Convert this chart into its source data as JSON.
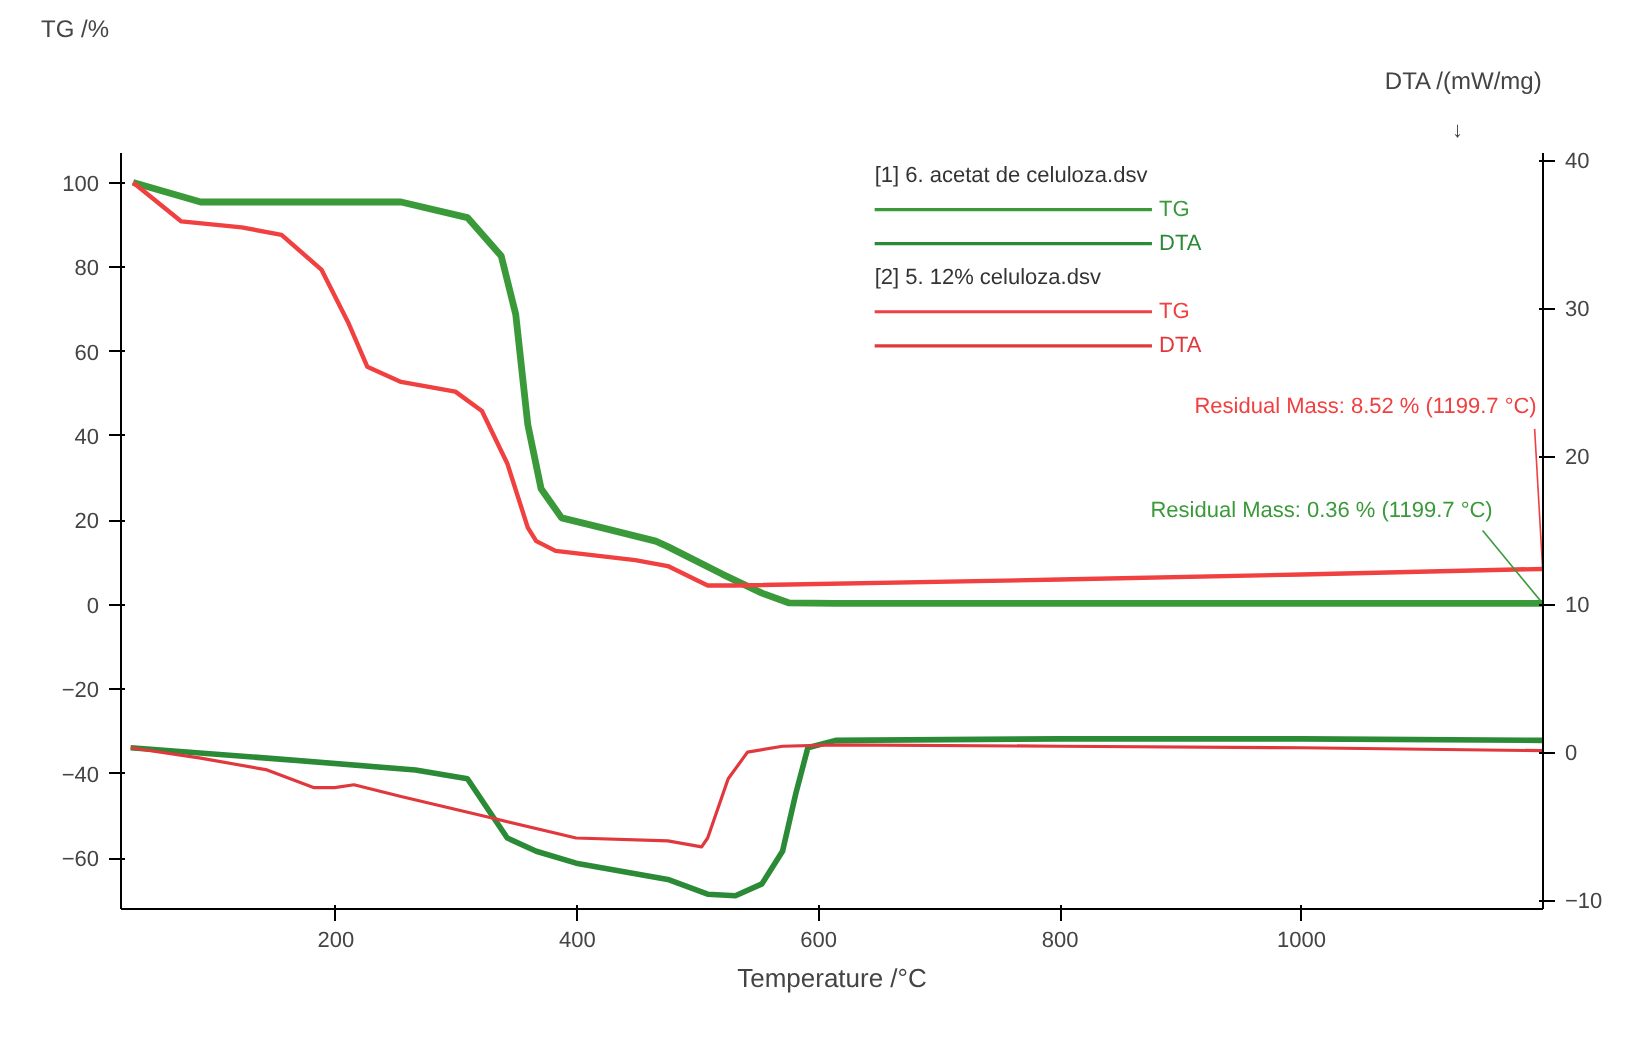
{
  "chart_data": {
    "type": "line",
    "xlabel": "Temperature /°C",
    "ylabel": "TG /%",
    "y2label": "DTA /(mW/mg)",
    "xlim": [
      22,
      1200
    ],
    "xticks": [
      200,
      400,
      600,
      800,
      1000
    ],
    "ylim": [
      -72,
      107
    ],
    "yticks": [
      -60,
      -40,
      -20,
      0,
      20,
      40,
      60,
      80,
      100
    ],
    "y2lim": [
      -10.6,
      40.5
    ],
    "y2ticks": [
      -10,
      0,
      10,
      20,
      30,
      40
    ],
    "grid": false,
    "legend": "top",
    "line_style": "solid",
    "marker": "none",
    "annotations": [
      "[1] 6. acetat de celuloza.dsv",
      "[2] 5. 12% celuloza.dsv",
      "↓",
      {
        "text": "Residual Mass: 8.52 % (1199.7 °C)",
        "x": 1199.7,
        "y": 8.52
      },
      {
        "text": "Residual Mass: 0.36 % (1199.7 °C)",
        "x": 1199.7,
        "y": 0.36
      }
    ],
    "series": [
      {
        "name": "TG",
        "color": "#3a9a3a",
        "x": [
          32,
          88,
          254,
          309,
          337,
          349,
          359,
          370,
          387,
          420,
          465,
          475,
          520,
          553,
          575,
          614,
          800,
          1000,
          1199.7
        ],
        "values": [
          100,
          95.4,
          95.4,
          91.7,
          82.6,
          68.8,
          42.7,
          27.5,
          20.6,
          18.3,
          15.1,
          13.8,
          7.3,
          2.8,
          0.5,
          0.36,
          0.36,
          0.36,
          0.36
        ]
      },
      {
        "name": "DTA",
        "color": "#2a8a36",
        "axis": "y2",
        "x": [
          30,
          143,
          266,
          309,
          342,
          366,
          399,
          475,
          508,
          531,
          553,
          570,
          581,
          591,
          614,
          800,
          1000,
          1199.7
        ],
        "values": [
          0.3,
          -0.4,
          -1.2,
          -1.8,
          -5.8,
          -6.7,
          -7.5,
          -8.6,
          -9.6,
          -9.7,
          -8.9,
          -6.7,
          -2.8,
          0.3,
          0.8,
          0.9,
          0.9,
          0.8
        ]
      },
      {
        "name": "TG",
        "color": "#f04040",
        "x": [
          32,
          72,
          122,
          155,
          188,
          210,
          226,
          254,
          299,
          321,
          342,
          359,
          366,
          382,
          448,
          475,
          508,
          530,
          800,
          1000,
          1199.7
        ],
        "values": [
          100,
          90.8,
          89.4,
          87.6,
          79.4,
          67,
          56.4,
          52.8,
          50.5,
          45.9,
          33.5,
          18.3,
          15.1,
          12.8,
          10.6,
          9.2,
          4.6,
          4.6,
          6.0,
          7.2,
          8.52
        ]
      },
      {
        "name": "DTA",
        "color": "#e0383c",
        "axis": "y2",
        "x": [
          30,
          88,
          143,
          182,
          199,
          215,
          254,
          332,
          399,
          475,
          503,
          508,
          525,
          541,
          570,
          614,
          800,
          1000,
          1199.7
        ],
        "values": [
          0.3,
          -0.4,
          -1.2,
          -2.4,
          -2.4,
          -2.2,
          -3,
          -4.5,
          -5.8,
          -6,
          -6.4,
          -5.8,
          -1.8,
          0,
          0.4,
          0.5,
          0.4,
          0.3,
          0.1
        ]
      }
    ]
  }
}
